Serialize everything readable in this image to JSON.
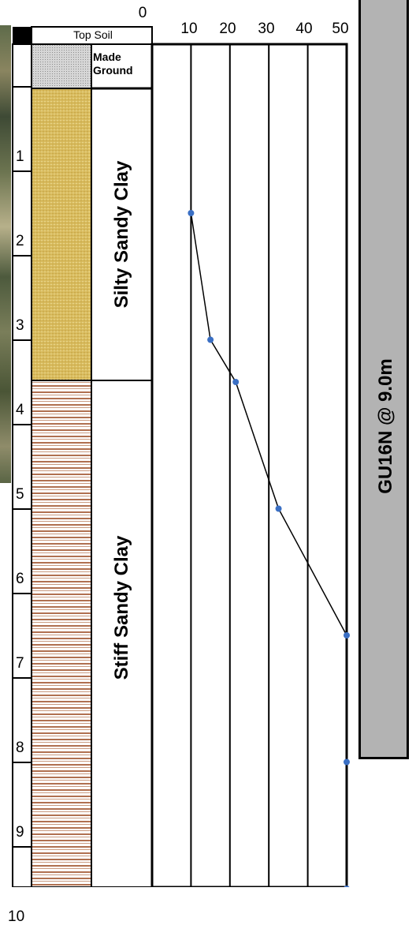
{
  "layers": [
    {
      "name": "Top Soil",
      "top_m": 0.0,
      "bottom_m": 0.0
    },
    {
      "name": "Made Ground",
      "line1": "Made",
      "line2": "Ground",
      "top_m": 0.0,
      "bottom_m": 0.5
    },
    {
      "name": "Silty Sandy Clay",
      "top_m": 0.5,
      "bottom_m": 4.0,
      "pattern_color": "#d8bb5e"
    },
    {
      "name": "Stiff Sandy Clay",
      "top_m": 4.0,
      "bottom_m": 10.0,
      "pattern_color": "#b07050"
    }
  ],
  "depth_labels": [
    "1",
    "2",
    "3",
    "4",
    "5",
    "6",
    "7",
    "8",
    "9",
    "10"
  ],
  "axis": {
    "zero_label": "0",
    "ticks": [
      "10",
      "20",
      "30",
      "40",
      "50"
    ]
  },
  "sample_label": "GU16N @ 9.0m",
  "colors": {
    "made_ground": "#c8c8c8",
    "silty_clay": "#d8bb5e",
    "stiff_clay_stripe": "#b07050",
    "points": "#3a6fc4",
    "sample_box": "#b3b3b3"
  },
  "chart_data": {
    "type": "line",
    "xlabel": "",
    "ylabel": "",
    "xlim": [
      0,
      50
    ],
    "ylim": [
      0,
      10
    ],
    "x_ticks": [
      10,
      20,
      30,
      40,
      50
    ],
    "series": [
      {
        "points": [
          {
            "x": 10,
            "y": 2.0
          },
          {
            "x": 15,
            "y": 3.5
          },
          {
            "x": 21.5,
            "y": 4.0
          },
          {
            "x": 32.5,
            "y": 5.5
          },
          {
            "x": 50,
            "y": 7.0
          },
          {
            "x": 50,
            "y": 8.5
          },
          {
            "x": 50,
            "y": 10.0
          }
        ],
        "line_through_first": 5
      }
    ]
  }
}
